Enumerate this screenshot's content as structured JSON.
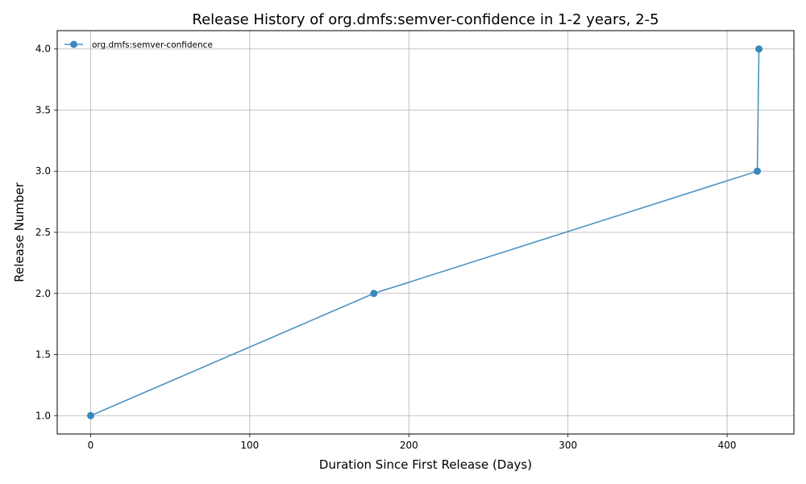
{
  "chart_data": {
    "type": "line",
    "title": "Release History of org.dmfs:semver-confidence in 1-2 years, 2-5",
    "xlabel": "Duration Since First Release (Days)",
    "ylabel": "Release Number",
    "xlim": [
      -21,
      442
    ],
    "ylim": [
      0.85,
      4.15
    ],
    "xticks": [
      0,
      100,
      200,
      300,
      400
    ],
    "yticks": [
      1.0,
      1.5,
      2.0,
      2.5,
      3.0,
      3.5,
      4.0
    ],
    "grid": true,
    "legend_position": "top-left",
    "series": [
      {
        "name": "org.dmfs:semver-confidence",
        "color": "#3a87bb",
        "marker": "circle",
        "x": [
          0,
          178,
          419,
          420
        ],
        "y": [
          1,
          2,
          3,
          4
        ]
      }
    ]
  }
}
